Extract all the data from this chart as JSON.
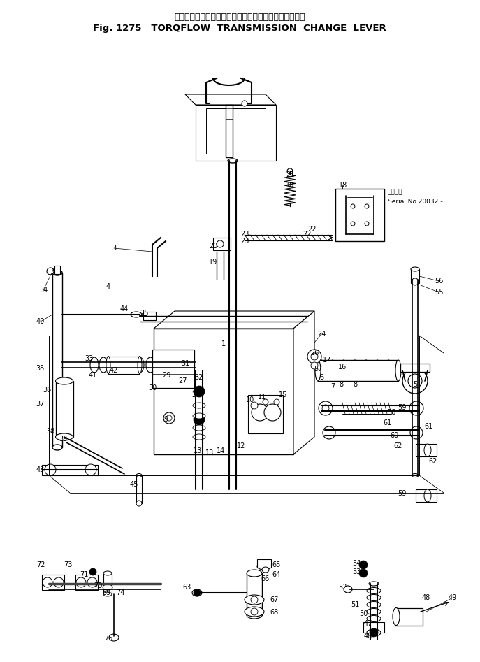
{
  "title_japanese": "トルクフロー　トランスミッション　チェンジ　レバー",
  "title_line2": "Fig. 1275   TORQFLOW  TRANSMISSION  CHANGE  LEVER",
  "bg": "#ffffff",
  "fw": 6.87,
  "fh": 9.47,
  "dpi": 100,
  "serial_jp": "適用番号",
  "serial_en": "Serial No.20032~"
}
